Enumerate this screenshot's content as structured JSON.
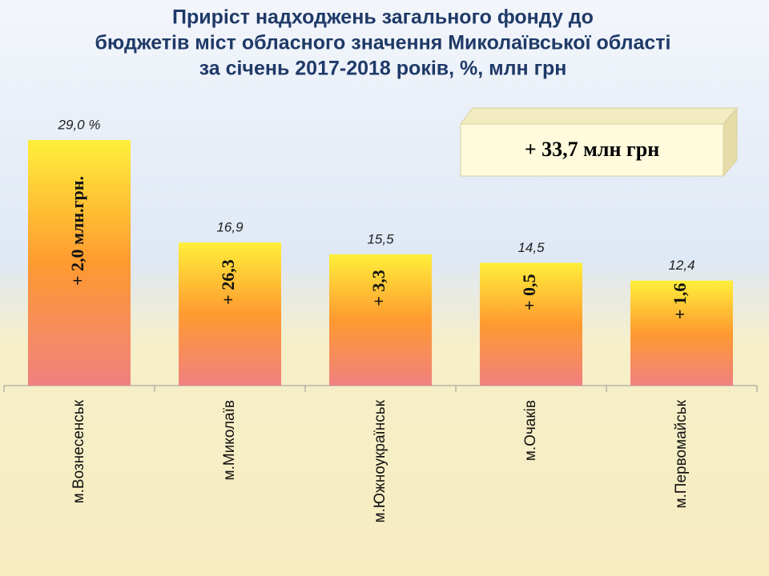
{
  "chart_data": {
    "type": "bar",
    "title": [
      "Приріст надходжень загального фонду до",
      "бюджетів міст обласного значення Миколаївської області",
      "за січень 2017-2018 років, %, млн грн"
    ],
    "categories": [
      "м.Вознесенськ",
      "м.Миколаїв",
      "м.Южноукраїнськ",
      "м.Очаків",
      "м.Первомайськ"
    ],
    "values": [
      29.0,
      16.9,
      15.5,
      14.5,
      12.4
    ],
    "value_labels": [
      "29,0 %",
      "16,9",
      "15,5",
      "14,5",
      "12,4"
    ],
    "bar_annotations": [
      "+ 2,0  млн.грн.",
      "+ 26,3",
      "+ 3,3",
      "+ 0,5",
      "+ 1,6"
    ],
    "total_annotation": "+ 33,7 млн грн"
  }
}
